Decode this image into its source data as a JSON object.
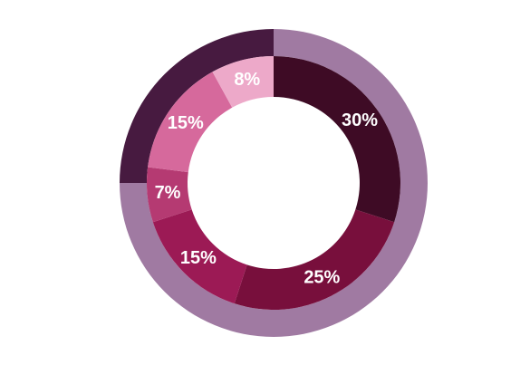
{
  "chart_data": [
    {
      "type": "pie",
      "subtype": "donut-outer-ring",
      "start_angle_deg": 0,
      "direction": "clockwise",
      "slices": [
        {
          "value": 75,
          "color": "#a07aa2"
        },
        {
          "value": 25,
          "color": "#471a40"
        }
      ]
    },
    {
      "type": "pie",
      "subtype": "donut-inner-ring",
      "start_angle_deg": 0,
      "direction": "clockwise",
      "slices": [
        {
          "label": "30%",
          "value": 30,
          "color": "#3e0b25"
        },
        {
          "label": "25%",
          "value": 25,
          "color": "#780f3c"
        },
        {
          "label": "15%",
          "value": 15,
          "color": "#9c1a55"
        },
        {
          "label": "7%",
          "value": 7,
          "color": "#b53a72"
        },
        {
          "label": "15%",
          "value": 15,
          "color": "#d6699c"
        },
        {
          "label": "8%",
          "value": 8,
          "color": "#eda9c9"
        }
      ]
    }
  ]
}
